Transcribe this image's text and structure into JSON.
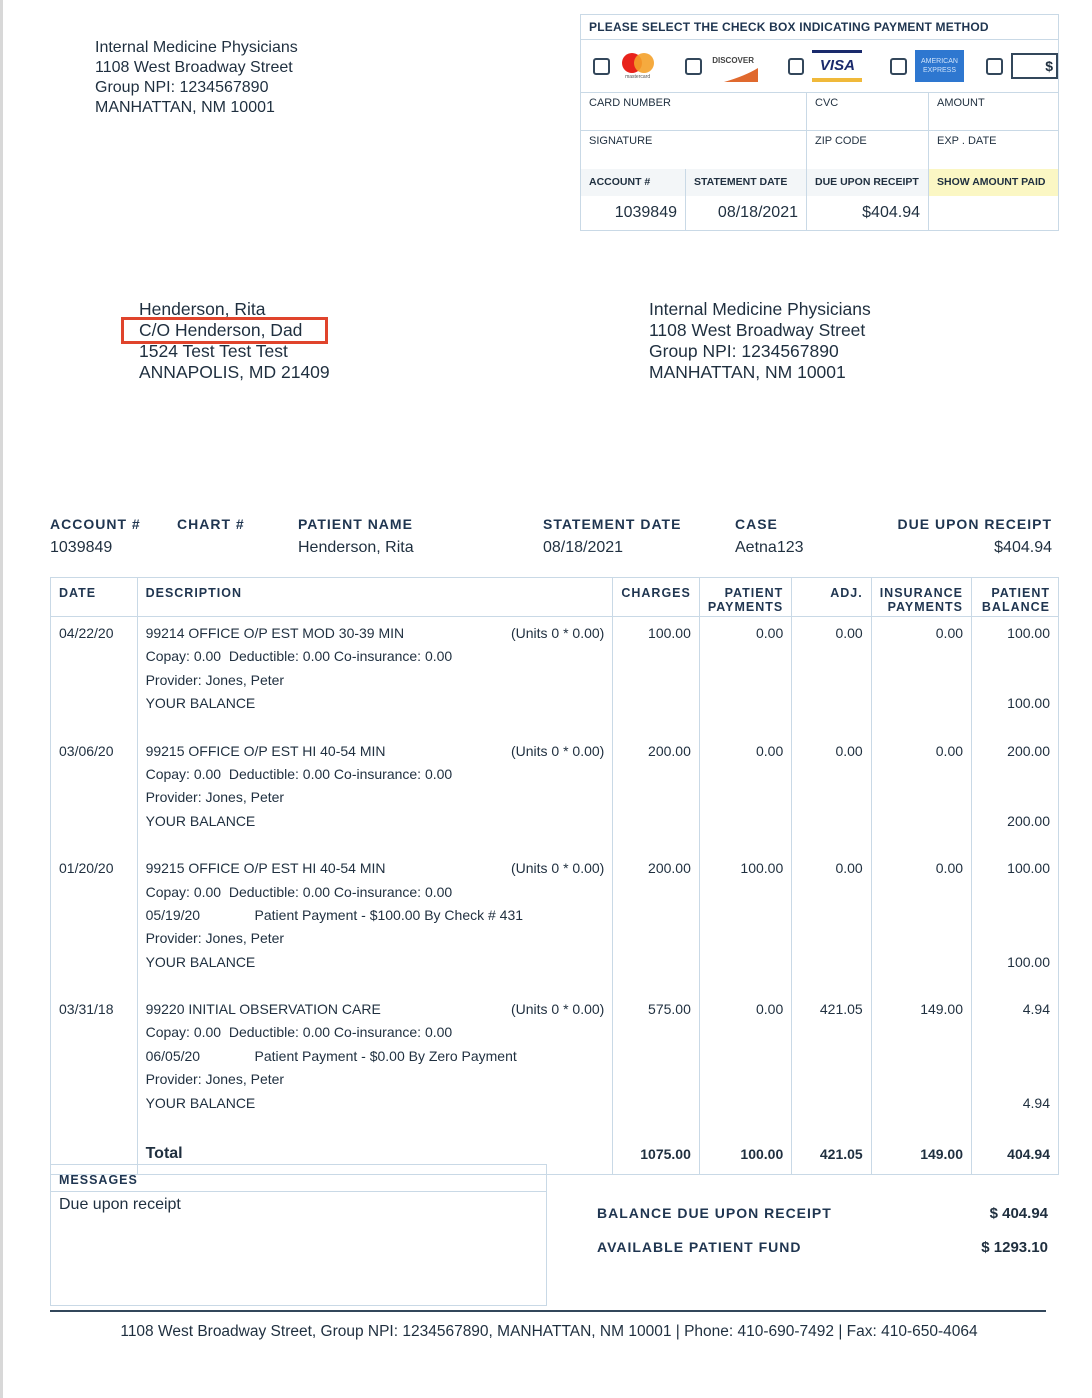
{
  "sender": {
    "name": "Internal Medicine Physicians",
    "street": "1108 West Broadway Street",
    "npi": "Group NPI: 1234567890",
    "city": "MANHATTAN, NM 10001"
  },
  "payment": {
    "title": "PLEASE SELECT THE CHECK BOX INDICATING PAYMENT METHOD",
    "methods": [
      "mastercard-logo",
      "discover-logo",
      "visa-logo",
      "american-express-logo",
      "check-icon"
    ],
    "mastercard_text": "mastercard",
    "discover_text": "DISCOVER",
    "visa_text": "VISA",
    "amex_text": "AMERICAN EXPRESS",
    "check_text": "$",
    "card_number": "CARD NUMBER",
    "cvc": "CVC",
    "amount": "AMOUNT",
    "signature": "SIGNATURE",
    "zip": "ZIP CODE",
    "exp": "EXP . DATE",
    "h_account": "ACCOUNT #",
    "h_date": "STATEMENT DATE",
    "h_due": "DUE UPON RECEIPT",
    "h_paid": "SHOW AMOUNT PAID",
    "account": "1039849",
    "date": "08/18/2021",
    "due": "$404.94",
    "paid": "",
    "highlight_color": "#fbf7c4"
  },
  "recipient": {
    "name": "Henderson, Rita",
    "co": "C/O Henderson, Dad",
    "street": "1524 Test Test Test",
    "city": "ANNAPOLIS, MD 21409",
    "highlight_color": "#e0442c"
  },
  "remit": {
    "name": "Internal Medicine Physicians",
    "street": "1108 West Broadway Street",
    "npi": "Group NPI: 1234567890",
    "city": "MANHATTAN, NM 10001"
  },
  "summary": {
    "labels": {
      "account": "ACCOUNT #",
      "chart": "CHART #",
      "patient": "PATIENT NAME",
      "date": "STATEMENT DATE",
      "case": "CASE",
      "due": "DUE UPON RECEIPT"
    },
    "values": {
      "account": "1039849",
      "chart": "",
      "patient": "Henderson, Rita",
      "date": "08/18/2021",
      "case": "Aetna123",
      "due": "$404.94"
    }
  },
  "table": {
    "headers": {
      "date": "DATE",
      "desc": "DESCRIPTION",
      "charges": "CHARGES",
      "pp1": "PATIENT",
      "pp2": "PAYMENTS",
      "adj": "ADJ.",
      "ip1": "INSURANCE",
      "ip2": "PAYMENTS",
      "pb1": "PATIENT",
      "pb2": "BALANCE"
    },
    "entries": [
      {
        "date": "04/22/20",
        "code": "99214 OFFICE O/P EST MOD 30-39 MIN",
        "units": "(Units 0 * 0.00)",
        "lines": [
          "Copay: 0.00  Deductible: 0.00 Co-insurance: 0.00",
          "Provider: Jones, Peter",
          "YOUR BALANCE"
        ],
        "charges": "100.00",
        "patient_payments": "0.00",
        "adj": "0.00",
        "insurance_payments": "0.00",
        "patient_balance": "100.00",
        "your_balance": "100.00"
      },
      {
        "date": "03/06/20",
        "code": "99215 OFFICE O/P EST HI 40-54 MIN",
        "units": "(Units 0 * 0.00)",
        "lines": [
          "Copay: 0.00  Deductible: 0.00 Co-insurance: 0.00",
          "Provider: Jones, Peter",
          "YOUR BALANCE"
        ],
        "charges": "200.00",
        "patient_payments": "0.00",
        "adj": "0.00",
        "insurance_payments": "0.00",
        "patient_balance": "200.00",
        "your_balance": "200.00"
      },
      {
        "date": "01/20/20",
        "code": "99215 OFFICE O/P EST HI 40-54 MIN",
        "units": "(Units 0 * 0.00)",
        "lines": [
          "Copay: 0.00  Deductible: 0.00 Co-insurance: 0.00",
          "05/19/20              Patient Payment - $100.00 By Check # 431",
          "Provider: Jones, Peter",
          "YOUR BALANCE"
        ],
        "charges": "200.00",
        "patient_payments": "100.00",
        "adj": "0.00",
        "insurance_payments": "0.00",
        "patient_balance": "100.00",
        "your_balance": "100.00"
      },
      {
        "date": "03/31/18",
        "code": "99220 INITIAL OBSERVATION CARE",
        "units": "(Units 0 * 0.00)",
        "lines": [
          "Copay: 0.00  Deductible: 0.00 Co-insurance: 0.00",
          "06/05/20              Patient Payment - $0.00 By Zero Payment",
          "Provider: Jones, Peter",
          "YOUR BALANCE"
        ],
        "charges": "575.00",
        "patient_payments": "0.00",
        "adj": "421.05",
        "insurance_payments": "149.00",
        "patient_balance": "4.94",
        "your_balance": "4.94"
      }
    ],
    "total": {
      "label": "Total",
      "charges": "1075.00",
      "patient_payments": "100.00",
      "adj": "421.05",
      "insurance_payments": "149.00",
      "patient_balance": "404.94"
    }
  },
  "messages": {
    "title": "MESSAGES",
    "body": "Due upon receipt"
  },
  "balance": {
    "due_label": "BALANCE DUE UPON RECEIPT",
    "due": "$ 404.94",
    "fund_label": "AVAILABLE PATIENT FUND",
    "fund": "$ 1293.10"
  },
  "footer": "1108 West Broadway Street, Group NPI: 1234567890, MANHATTAN, NM 10001 | Phone: 410-690-7492 | Fax: 410-650-4064"
}
